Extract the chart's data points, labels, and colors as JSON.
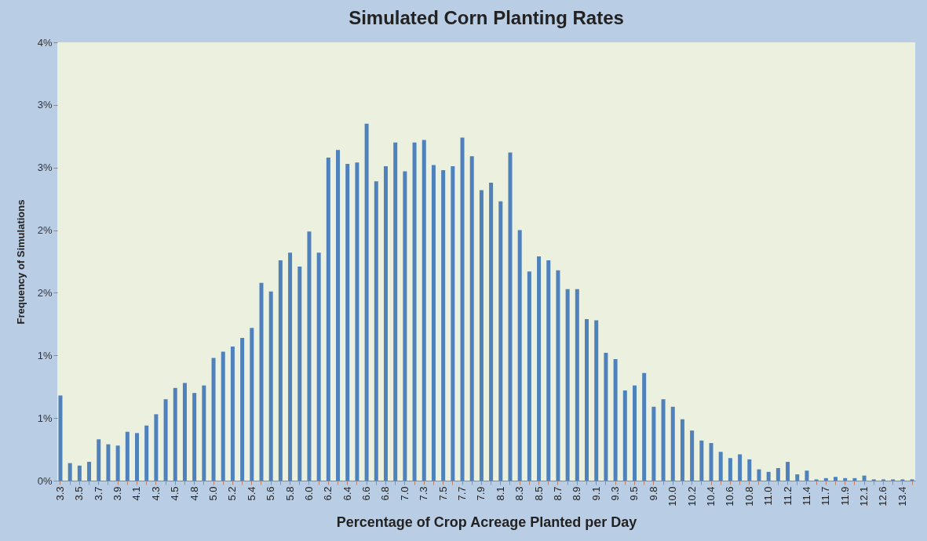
{
  "chart_data": {
    "type": "bar",
    "title": "Simulated Corn Planting Rates",
    "xlabel": "Percentage of Crop Acreage Planted per Day",
    "ylabel": "Frequency of Simulations",
    "categories": [
      "3.3",
      null,
      "3.5",
      null,
      "3.7",
      null,
      "3.9",
      null,
      "4.1",
      null,
      "4.3",
      null,
      "4.5",
      null,
      "4.8",
      null,
      "5.0",
      null,
      "5.2",
      null,
      "5.4",
      null,
      "5.6",
      null,
      "5.8",
      null,
      "6.0",
      null,
      "6.2",
      null,
      "6.4",
      null,
      "6.6",
      null,
      "6.8",
      null,
      "7.0",
      null,
      "7.3",
      null,
      "7.5",
      null,
      "7.7",
      null,
      "7.9",
      null,
      "8.1",
      null,
      "8.3",
      null,
      "8.5",
      null,
      "8.7",
      null,
      "8.9",
      null,
      "9.1",
      null,
      "9.3",
      null,
      "9.5",
      null,
      "9.8",
      null,
      "10.0",
      null,
      "10.2",
      null,
      "10.4",
      null,
      "10.6",
      null,
      "10.8",
      null,
      "11.0",
      null,
      "11.2",
      null,
      "11.4",
      null,
      "11.7",
      null,
      "11.9",
      null,
      "12.1",
      null,
      "12.6",
      null,
      "13.4",
      null
    ],
    "values": [
      0.68,
      0.14,
      0.12,
      0.15,
      0.33,
      0.29,
      0.28,
      0.39,
      0.38,
      0.44,
      0.53,
      0.65,
      0.74,
      0.78,
      0.7,
      0.76,
      0.98,
      1.03,
      1.07,
      1.14,
      1.22,
      1.58,
      1.51,
      1.76,
      1.82,
      1.71,
      1.99,
      1.82,
      2.58,
      2.64,
      2.53,
      2.54,
      2.85,
      2.39,
      2.51,
      2.7,
      2.47,
      2.7,
      2.72,
      2.52,
      2.48,
      2.51,
      2.74,
      2.59,
      2.32,
      2.38,
      2.23,
      2.62,
      2.0,
      1.67,
      1.79,
      1.76,
      1.68,
      1.53,
      1.53,
      1.29,
      1.28,
      1.02,
      0.97,
      0.72,
      0.76,
      0.86,
      0.59,
      0.65,
      0.59,
      0.49,
      0.4,
      0.32,
      0.3,
      0.23,
      0.18,
      0.21,
      0.17,
      0.09,
      0.07,
      0.1,
      0.15,
      0.05,
      0.08,
      0.01,
      0.02,
      0.03,
      0.02,
      0.02,
      0.04,
      0.01,
      0.01,
      0.01,
      0.01,
      0.01
    ],
    "color": "#4f81bd",
    "ylim": [
      0,
      3.5
    ],
    "yticks": [
      {
        "value": 0,
        "label": "0%"
      },
      {
        "value": 0.5,
        "label": "1%"
      },
      {
        "value": 1,
        "label": "1%"
      },
      {
        "value": 1.5,
        "label": "2%"
      },
      {
        "value": 2,
        "label": "2%"
      },
      {
        "value": 2.5,
        "label": "3%"
      },
      {
        "value": 3,
        "label": "3%"
      },
      {
        "value": 3.5,
        "label": "4%"
      }
    ],
    "grid": false
  }
}
